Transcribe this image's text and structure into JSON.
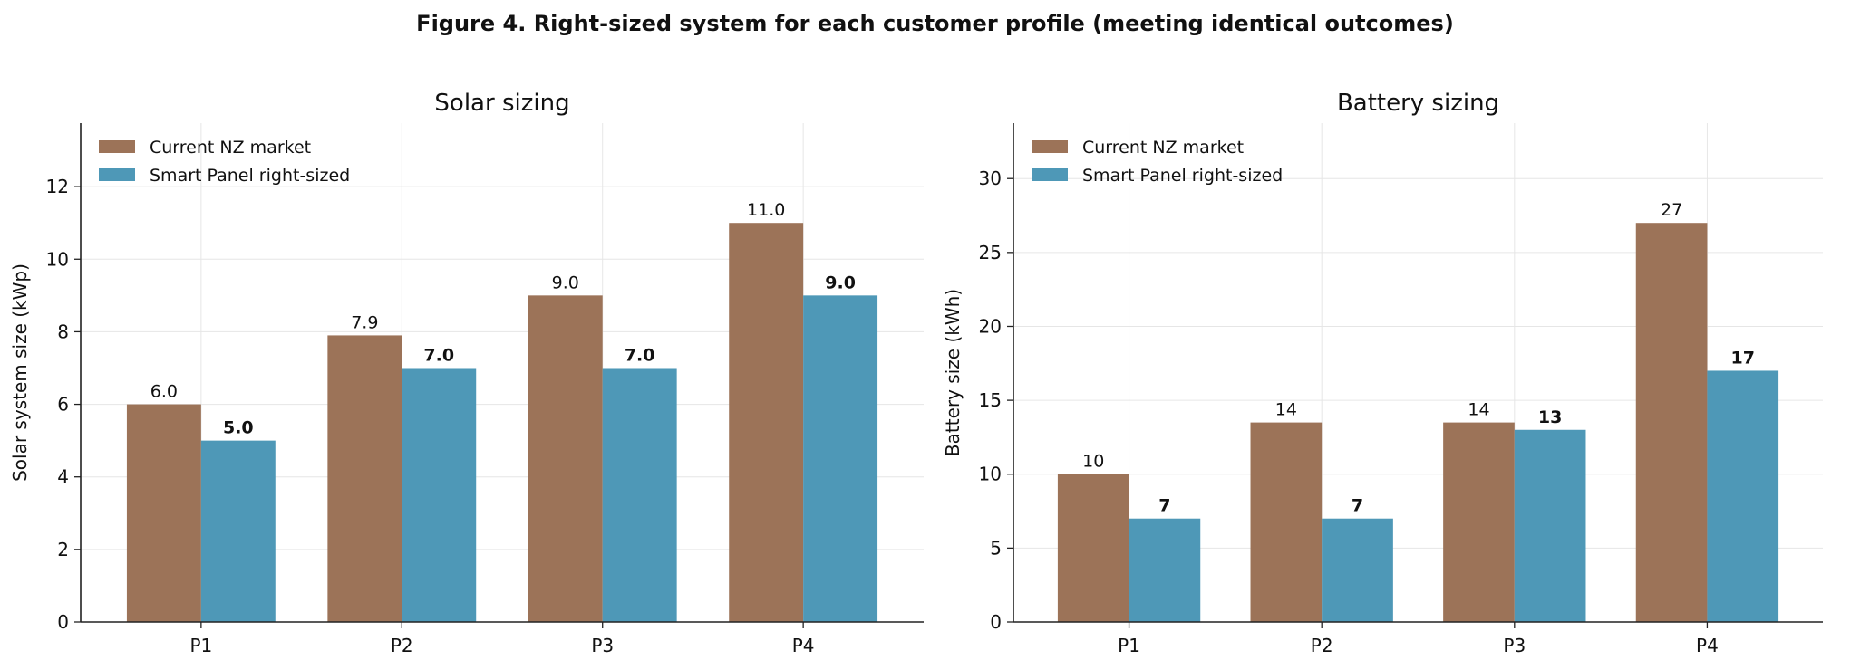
{
  "figure_title": "Figure 4. Right-sized system for each customer profile (meeting identical outcomes)",
  "colors": {
    "current": "#9c7358",
    "smart": "#4e98b7"
  },
  "chart_data": [
    {
      "type": "bar",
      "title": "Solar sizing",
      "ylabel": "Solar system size (kWp)",
      "xlabel": "",
      "categories": [
        "P1",
        "P2",
        "P3",
        "P4"
      ],
      "ylim": [
        0,
        13.75
      ],
      "yticks": [
        0,
        2,
        4,
        6,
        8,
        10,
        12
      ],
      "grid": true,
      "legend_position": "top-left",
      "series": [
        {
          "name": "Current NZ market",
          "values": [
            6.0,
            7.9,
            9.0,
            11.0
          ],
          "labels": [
            "6.0",
            "7.9",
            "9.0",
            "11.0"
          ],
          "bold_labels": false
        },
        {
          "name": "Smart Panel right-sized",
          "values": [
            5.0,
            7.0,
            7.0,
            9.0
          ],
          "labels": [
            "5.0",
            "7.0",
            "7.0",
            "9.0"
          ],
          "bold_labels": true
        }
      ]
    },
    {
      "type": "bar",
      "title": "Battery sizing",
      "ylabel": "Battery size (kWh)",
      "xlabel": "",
      "categories": [
        "P1",
        "P2",
        "P3",
        "P4"
      ],
      "ylim": [
        0,
        33.75
      ],
      "yticks": [
        0,
        5,
        10,
        15,
        20,
        25,
        30
      ],
      "grid": true,
      "legend_position": "top-left",
      "series": [
        {
          "name": "Current NZ market",
          "values": [
            10,
            13.5,
            13.5,
            27
          ],
          "labels": [
            "10",
            "14",
            "14",
            "27"
          ],
          "bold_labels": false
        },
        {
          "name": "Smart Panel right-sized",
          "values": [
            7,
            7,
            13,
            17
          ],
          "labels": [
            "7",
            "7",
            "13",
            "17"
          ],
          "bold_labels": true
        }
      ]
    }
  ]
}
